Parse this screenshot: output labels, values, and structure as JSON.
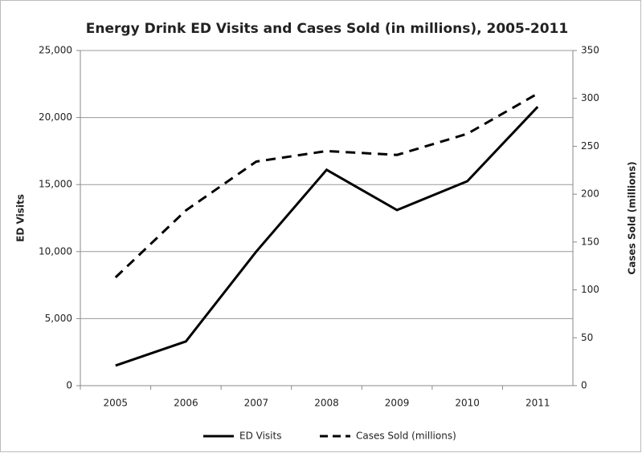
{
  "chart_data": {
    "type": "line",
    "title": "Energy Drink ED Visits and Cases Sold (in millions), 2005-2011",
    "categories": [
      "2005",
      "2006",
      "2007",
      "2008",
      "2009",
      "2010",
      "2011"
    ],
    "series": [
      {
        "name": "ED Visits",
        "color": "#000000",
        "linestyle": "solid",
        "axis": "y",
        "values": [
          1500,
          3300,
          10000,
          16100,
          13100,
          15250,
          20800
        ]
      },
      {
        "name": "Cases Sold (millions)",
        "color": "#000000",
        "linestyle": "dashed",
        "axis": "y2",
        "values": [
          113,
          183,
          234,
          245,
          241,
          263,
          305
        ]
      }
    ],
    "ylabel": "ED Visits",
    "y2label": "Cases Sold  (millions)",
    "ylim": [
      0,
      25000
    ],
    "yticks": [
      0,
      {
        "value": 5000,
        "label": "5,000"
      },
      {
        "value": 10000,
        "label": "10,000"
      },
      {
        "value": 15000,
        "label": "15,000"
      },
      {
        "value": 20000,
        "label": "20,000"
      },
      {
        "value": 25000,
        "label": "25,000"
      }
    ],
    "y2lim": [
      0,
      350
    ],
    "y2ticks": [
      0,
      50,
      100,
      150,
      200,
      250,
      300,
      350
    ],
    "grid": true,
    "legend": "bottom"
  }
}
